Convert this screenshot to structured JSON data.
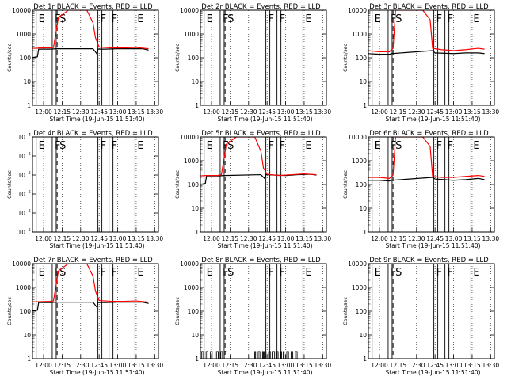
{
  "chart_data": [
    {
      "type": "line",
      "title": "Det 1r BLACK = Events, RED = LLD",
      "ylabel": "Counts/sec",
      "xlabel": "Start Time (19-Jun-15 11:51:40)",
      "y_scale": "log",
      "ylim": [
        1,
        10000
      ],
      "y_ticks": [
        "1",
        "10",
        "100",
        "1000",
        "10000"
      ],
      "x_ticks": [
        "12:00",
        "12:15",
        "12:30",
        "12:45",
        "13:00",
        "13:15",
        "13:30"
      ],
      "markers": [
        {
          "label": "E",
          "t": "11:54"
        },
        {
          "label": "F",
          "t": "12:07"
        },
        {
          "label": "S",
          "t": "12:11"
        },
        {
          "label": "F",
          "t": "12:44"
        },
        {
          "label": "F",
          "t": "12:53"
        },
        {
          "label": "E",
          "t": "13:14"
        }
      ],
      "series": [
        {
          "color": "#000000",
          "x": [
            "11:50",
            "11:55",
            "11:56",
            "12:06",
            "12:10",
            "12:40",
            "12:43",
            "12:44",
            "12:50",
            "13:00",
            "13:10",
            "13:20",
            "13:25"
          ],
          "y": [
            100,
            110,
            230,
            230,
            240,
            240,
            150,
            230,
            230,
            240,
            240,
            240,
            210
          ]
        },
        {
          "color": "#ff0000",
          "x": [
            "11:50",
            "11:55",
            "11:56",
            "12:05",
            "12:08",
            "12:12",
            "12:20",
            "12:35",
            "12:40",
            "12:42",
            "12:45",
            "12:55",
            "13:05",
            "13:15",
            "13:25"
          ],
          "y": [
            250,
            250,
            260,
            260,
            270,
            5000,
            10000,
            10000,
            3000,
            700,
            280,
            260,
            260,
            270,
            240
          ]
        }
      ]
    },
    {
      "type": "line",
      "title": "Det 2r BLACK = Events, RED = LLD",
      "ylabel": "Counts/sec",
      "xlabel": "Start Time (19-Jun-15 11:51:40)",
      "y_scale": "log",
      "ylim": [
        1,
        10000
      ],
      "y_ticks": [
        "1",
        "10",
        "100",
        "1000",
        "10000"
      ],
      "x_ticks": [
        "12:00",
        "12:15",
        "12:30",
        "12:45",
        "13:00",
        "13:15",
        "13:30"
      ],
      "markers": [
        {
          "label": "E",
          "t": "11:54"
        },
        {
          "label": "F",
          "t": "12:07"
        },
        {
          "label": "S",
          "t": "12:11"
        },
        {
          "label": "F",
          "t": "12:44"
        },
        {
          "label": "F",
          "t": "12:53"
        },
        {
          "label": "E",
          "t": "13:14"
        }
      ],
      "series": []
    },
    {
      "type": "line",
      "title": "Det 3r BLACK = Events, RED = LLD",
      "ylabel": "Counts/sec",
      "xlabel": "Start Time (19-Jun-15 11:51:40)",
      "y_scale": "log",
      "ylim": [
        1,
        10000
      ],
      "y_ticks": [
        "1",
        "10",
        "100",
        "1000",
        "10000"
      ],
      "x_ticks": [
        "12:00",
        "12:15",
        "12:30",
        "12:45",
        "13:00",
        "13:15",
        "13:30"
      ],
      "markers": [
        {
          "label": "E",
          "t": "11:54"
        },
        {
          "label": "F",
          "t": "12:07"
        },
        {
          "label": "S",
          "t": "12:11"
        },
        {
          "label": "F",
          "t": "12:44"
        },
        {
          "label": "F",
          "t": "12:53"
        },
        {
          "label": "E",
          "t": "13:14"
        }
      ],
      "series": [
        {
          "color": "#000000",
          "x": [
            "11:50",
            "12:00",
            "12:08",
            "12:10",
            "12:43",
            "12:45",
            "13:00",
            "13:10",
            "13:20",
            "13:25"
          ],
          "y": [
            150,
            140,
            140,
            150,
            200,
            160,
            150,
            160,
            160,
            150
          ]
        },
        {
          "color": "#ff0000",
          "x": [
            "11:50",
            "12:00",
            "12:08",
            "12:11",
            "12:13",
            "12:35",
            "12:41",
            "12:43",
            "12:50",
            "13:00",
            "13:10",
            "13:20",
            "13:25"
          ],
          "y": [
            200,
            180,
            180,
            250,
            10000,
            10000,
            4000,
            250,
            220,
            200,
            220,
            250,
            230
          ]
        }
      ]
    },
    {
      "type": "line",
      "title": "Det 4r BLACK = Events, RED = LLD",
      "ylabel": "Counts/sec",
      "xlabel": "Start Time (19-Jun-15 11:51:40)",
      "y_scale": "log",
      "ylim": [
        1e-05,
        0.0001
      ],
      "y_ticks": [
        "10",
        "10",
        "10",
        "10",
        "10",
        "10"
      ],
      "y_tick_exponents": [
        "-5",
        "-5",
        "-5",
        "-5",
        "-5",
        "-4"
      ],
      "x_ticks": [
        "12:00",
        "12:15",
        "12:30",
        "12:45",
        "13:00",
        "13:15",
        "13:30"
      ],
      "markers": [
        {
          "label": "E",
          "t": "11:54"
        },
        {
          "label": "F",
          "t": "12:07"
        },
        {
          "label": "S",
          "t": "12:11"
        },
        {
          "label": "F",
          "t": "12:44"
        },
        {
          "label": "F",
          "t": "12:53"
        },
        {
          "label": "E",
          "t": "13:14"
        }
      ],
      "series": []
    },
    {
      "type": "line",
      "title": "Det 5r BLACK = Events, RED = LLD",
      "ylabel": "Counts/sec",
      "xlabel": "Start Time (19-Jun-15 11:51:40)",
      "y_scale": "log",
      "ylim": [
        1,
        10000
      ],
      "y_ticks": [
        "1",
        "10",
        "100",
        "1000",
        "10000"
      ],
      "x_ticks": [
        "12:00",
        "12:15",
        "12:30",
        "12:45",
        "13:00",
        "13:15",
        "13:30"
      ],
      "markers": [
        {
          "label": "E",
          "t": "11:54"
        },
        {
          "label": "F",
          "t": "12:07"
        },
        {
          "label": "S",
          "t": "12:11"
        },
        {
          "label": "F",
          "t": "12:44"
        },
        {
          "label": "F",
          "t": "12:53"
        },
        {
          "label": "E",
          "t": "13:14"
        }
      ],
      "series": [
        {
          "color": "#000000",
          "x": [
            "11:50",
            "11:55",
            "11:56",
            "12:06",
            "12:10",
            "12:40",
            "12:43",
            "12:44",
            "12:50",
            "13:00",
            "13:10",
            "13:20",
            "13:25"
          ],
          "y": [
            100,
            110,
            230,
            230,
            240,
            260,
            180,
            260,
            250,
            240,
            260,
            270,
            250
          ]
        },
        {
          "color": "#ff0000",
          "x": [
            "11:50",
            "11:56",
            "12:05",
            "12:08",
            "12:12",
            "12:20",
            "12:35",
            "12:40",
            "12:42",
            "12:45",
            "12:55",
            "13:05",
            "13:15",
            "13:25"
          ],
          "y": [
            230,
            240,
            240,
            260,
            5000,
            10000,
            10000,
            2500,
            500,
            270,
            240,
            260,
            280,
            260
          ]
        }
      ]
    },
    {
      "type": "line",
      "title": "Det 6r BLACK = Events, RED = LLD",
      "ylabel": "Counts/sec",
      "xlabel": "Start Time (19-Jun-15 11:51:40)",
      "y_scale": "log",
      "ylim": [
        1,
        10000
      ],
      "y_ticks": [
        "1",
        "10",
        "100",
        "1000",
        "10000"
      ],
      "x_ticks": [
        "12:00",
        "12:15",
        "12:30",
        "12:45",
        "13:00",
        "13:15",
        "13:30"
      ],
      "markers": [
        {
          "label": "E",
          "t": "11:54"
        },
        {
          "label": "F",
          "t": "12:07"
        },
        {
          "label": "S",
          "t": "12:11"
        },
        {
          "label": "F",
          "t": "12:44"
        },
        {
          "label": "F",
          "t": "12:53"
        },
        {
          "label": "E",
          "t": "13:14"
        }
      ],
      "series": [
        {
          "color": "#000000",
          "x": [
            "11:50",
            "12:00",
            "12:08",
            "12:10",
            "12:43",
            "12:45",
            "13:00",
            "13:10",
            "13:20",
            "13:25"
          ],
          "y": [
            150,
            150,
            140,
            150,
            200,
            170,
            150,
            160,
            180,
            160
          ]
        },
        {
          "color": "#ff0000",
          "x": [
            "11:50",
            "12:00",
            "12:08",
            "12:11",
            "12:13",
            "12:35",
            "12:41",
            "12:43",
            "12:50",
            "13:00",
            "13:10",
            "13:20",
            "13:25"
          ],
          "y": [
            200,
            200,
            180,
            250,
            10000,
            10000,
            4000,
            220,
            200,
            200,
            220,
            240,
            220
          ]
        }
      ]
    },
    {
      "type": "line",
      "title": "Det 7r BLACK = Events, RED = LLD",
      "ylabel": "Counts/sec",
      "xlabel": "Start Time (19-Jun-15 11:51:40)",
      "y_scale": "log",
      "ylim": [
        1,
        10000
      ],
      "y_ticks": [
        "1",
        "10",
        "100",
        "1000",
        "10000"
      ],
      "x_ticks": [
        "12:00",
        "12:15",
        "12:30",
        "12:45",
        "13:00",
        "13:15",
        "13:30"
      ],
      "markers": [
        {
          "label": "E",
          "t": "11:54"
        },
        {
          "label": "F",
          "t": "12:07"
        },
        {
          "label": "S",
          "t": "12:11"
        },
        {
          "label": "F",
          "t": "12:44"
        },
        {
          "label": "F",
          "t": "12:53"
        },
        {
          "label": "E",
          "t": "13:14"
        }
      ],
      "series": [
        {
          "color": "#000000",
          "x": [
            "11:50",
            "11:55",
            "11:56",
            "12:06",
            "12:10",
            "12:40",
            "12:43",
            "12:44",
            "12:50",
            "13:00",
            "13:10",
            "13:20",
            "13:25"
          ],
          "y": [
            100,
            110,
            230,
            230,
            240,
            240,
            150,
            230,
            230,
            240,
            240,
            240,
            210
          ]
        },
        {
          "color": "#ff0000",
          "x": [
            "11:50",
            "11:56",
            "12:05",
            "12:08",
            "12:12",
            "12:20",
            "12:35",
            "12:40",
            "12:42",
            "12:45",
            "12:55",
            "13:05",
            "13:15",
            "13:25"
          ],
          "y": [
            250,
            250,
            260,
            270,
            5000,
            10000,
            10000,
            3000,
            700,
            280,
            260,
            260,
            270,
            240
          ]
        }
      ]
    },
    {
      "type": "line",
      "title": "Det 8r BLACK = Events, RED = LLD",
      "ylabel": "Counts/sec",
      "xlabel": "Start Time (19-Jun-15 11:51:40)",
      "y_scale": "log",
      "ylim": [
        1,
        10000
      ],
      "y_ticks": [
        "1",
        "10",
        "100",
        "1000",
        "10000"
      ],
      "x_ticks": [
        "12:00",
        "12:15",
        "12:30",
        "12:45",
        "13:00",
        "13:15",
        "13:30"
      ],
      "markers": [
        {
          "label": "E",
          "t": "11:54"
        },
        {
          "label": "F",
          "t": "12:07"
        },
        {
          "label": "S",
          "t": "12:11"
        },
        {
          "label": "F",
          "t": "12:44"
        },
        {
          "label": "F",
          "t": "12:53"
        },
        {
          "label": "E",
          "t": "13:14"
        }
      ],
      "series": [
        {
          "color": "#000000",
          "style": "toggle",
          "levels": [
            1,
            2
          ],
          "segments": [
            [
              "11:50",
              "12:12"
            ],
            [
              "12:35",
              "13:10"
            ]
          ]
        }
      ]
    },
    {
      "type": "line",
      "title": "Det 9r BLACK = Events, RED = LLD",
      "ylabel": "Counts/sec",
      "xlabel": "Start Time (19-Jun-15 11:51:40)",
      "y_scale": "log",
      "ylim": [
        1,
        10000
      ],
      "y_ticks": [
        "1",
        "10",
        "100",
        "1000",
        "10000"
      ],
      "x_ticks": [
        "12:00",
        "12:15",
        "12:30",
        "12:45",
        "13:00",
        "13:15",
        "13:30"
      ],
      "markers": [
        {
          "label": "E",
          "t": "11:54"
        },
        {
          "label": "F",
          "t": "12:07"
        },
        {
          "label": "S",
          "t": "12:11"
        },
        {
          "label": "F",
          "t": "12:44"
        },
        {
          "label": "F",
          "t": "12:53"
        },
        {
          "label": "E",
          "t": "13:14"
        }
      ],
      "series": []
    }
  ]
}
